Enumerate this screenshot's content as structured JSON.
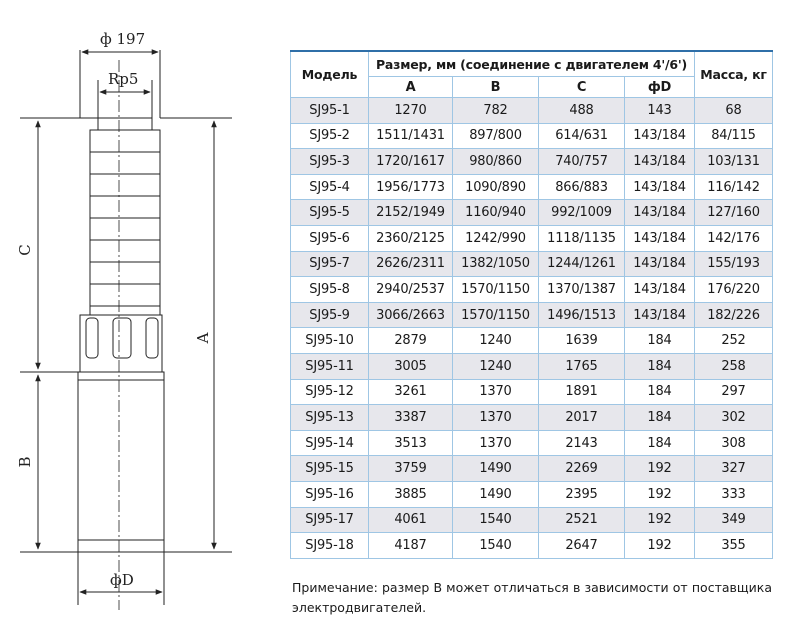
{
  "drawing": {
    "top_diameter_label": "ф 197",
    "thread_label": "Rp5",
    "dim_a_label": "A",
    "dim_b_label": "B",
    "dim_c_label": "C",
    "bottom_diameter_label": "фD"
  },
  "table": {
    "headers": {
      "model": "Модель",
      "size_group": "Размер, мм (соединение с двигателем 4'/6')",
      "mass": "Масса, кг",
      "col_a": "A",
      "col_b": "B",
      "col_c": "C",
      "col_d": "фD"
    },
    "rows": [
      {
        "model": "SJ95-1",
        "a": "1270",
        "b": "782",
        "c": "488",
        "d": "143",
        "mass": "68"
      },
      {
        "model": "SJ95-2",
        "a": "1511/1431",
        "b": "897/800",
        "c": "614/631",
        "d": "143/184",
        "mass": "84/115"
      },
      {
        "model": "SJ95-3",
        "a": "1720/1617",
        "b": "980/860",
        "c": "740/757",
        "d": "143/184",
        "mass": "103/131"
      },
      {
        "model": "SJ95-4",
        "a": "1956/1773",
        "b": "1090/890",
        "c": "866/883",
        "d": "143/184",
        "mass": "116/142"
      },
      {
        "model": "SJ95-5",
        "a": "2152/1949",
        "b": "1160/940",
        "c": "992/1009",
        "d": "143/184",
        "mass": "127/160"
      },
      {
        "model": "SJ95-6",
        "a": "2360/2125",
        "b": "1242/990",
        "c": "1118/1135",
        "d": "143/184",
        "mass": "142/176"
      },
      {
        "model": "SJ95-7",
        "a": "2626/2311",
        "b": "1382/1050",
        "c": "1244/1261",
        "d": "143/184",
        "mass": "155/193"
      },
      {
        "model": "SJ95-8",
        "a": "2940/2537",
        "b": "1570/1150",
        "c": "1370/1387",
        "d": "143/184",
        "mass": "176/220"
      },
      {
        "model": "SJ95-9",
        "a": "3066/2663",
        "b": "1570/1150",
        "c": "1496/1513",
        "d": "143/184",
        "mass": "182/226"
      },
      {
        "model": "SJ95-10",
        "a": "2879",
        "b": "1240",
        "c": "1639",
        "d": "184",
        "mass": "252"
      },
      {
        "model": "SJ95-11",
        "a": "3005",
        "b": "1240",
        "c": "1765",
        "d": "184",
        "mass": "258"
      },
      {
        "model": "SJ95-12",
        "a": "3261",
        "b": "1370",
        "c": "1891",
        "d": "184",
        "mass": "297"
      },
      {
        "model": "SJ95-13",
        "a": "3387",
        "b": "1370",
        "c": "2017",
        "d": "184",
        "mass": "302"
      },
      {
        "model": "SJ95-14",
        "a": "3513",
        "b": "1370",
        "c": "2143",
        "d": "184",
        "mass": "308"
      },
      {
        "model": "SJ95-15",
        "a": "3759",
        "b": "1490",
        "c": "2269",
        "d": "192",
        "mass": "327"
      },
      {
        "model": "SJ95-16",
        "a": "3885",
        "b": "1490",
        "c": "2395",
        "d": "192",
        "mass": "333"
      },
      {
        "model": "SJ95-17",
        "a": "4061",
        "b": "1540",
        "c": "2521",
        "d": "192",
        "mass": "349"
      },
      {
        "model": "SJ95-18",
        "a": "4187",
        "b": "1540",
        "c": "2647",
        "d": "192",
        "mass": "355"
      }
    ]
  },
  "note": "Примечание: размер B может отличаться в зависимости от поставщика электродвигателей.",
  "colors": {
    "header_rule": "#2f6fa8",
    "grid": "#9fc6e4",
    "stripe": "#e7e7ec"
  }
}
